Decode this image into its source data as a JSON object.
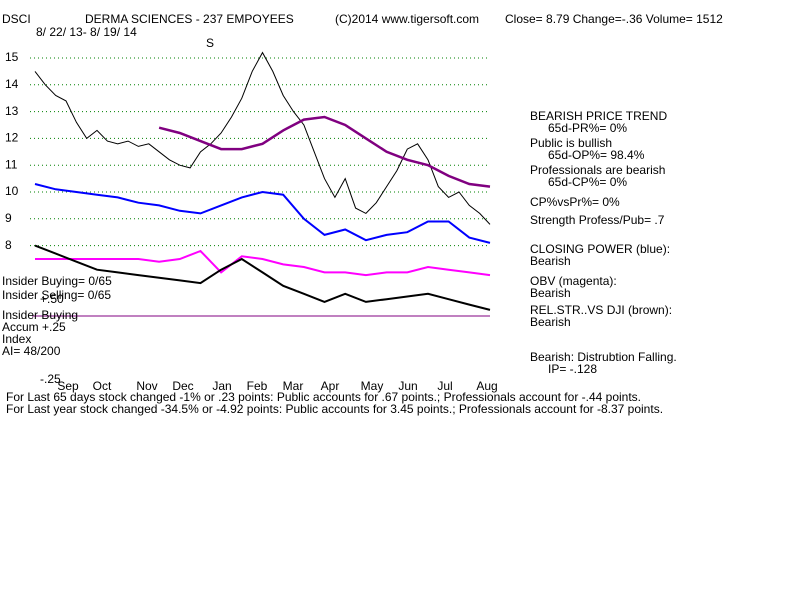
{
  "header": {
    "ticker": "DSCI",
    "company": "DERMA SCIENCES - 237 EMPOYEES",
    "copyright": "(C)2014 www.tigersoft.com",
    "quote": "Close=  8.79  Change=-.36 Volume= 1512",
    "dates": "8/ 22/ 13- 8/ 19/ 14"
  },
  "left_labels": [
    "Insider Buying= 0/65",
    "Insider Selling= 0/65",
    "+.50",
    "Insider Buying",
    "Accum  +.25",
    "Index",
    "AI= 48/200",
    "-.25"
  ],
  "marker": "S",
  "right_notes": [
    "BEARISH PRICE TREND",
    "65d-PR%= 0%",
    "Public is bullish",
    "65d-OP%= 98.4%",
    "Professionals are bearish",
    "65d-CP%= 0%",
    "CP%vsPr%=  0%",
    "Strength Profess/Pub= .7",
    "CLOSING POWER (blue):",
    "Bearish",
    "OBV (magenta):",
    "Bearish",
    "REL.STR..VS DJI (brown):",
    "Bearish",
    "Bearish: Distrubtion Falling.",
    "IP= -.128"
  ],
  "footer": [
    "For Last 65 days stock changed -1% or  .23 points:  Public accounts for  .67 points.;  Professionals account for -.44 points.",
    "For Last year stock changed -34.5% or -4.92 points:  Public accounts for  3.45 points.;  Professionals account for -8.37 points."
  ],
  "chart_data": {
    "type": "line",
    "month_labels": [
      "Sep",
      "Oct",
      "Nov",
      "Dec",
      "Jan",
      "Feb",
      "Mar",
      "Apr",
      "May",
      "Jun",
      "Jul",
      "Aug"
    ],
    "ylim": [
      5,
      15.5
    ],
    "yticks": [
      8,
      9,
      10,
      11,
      12,
      13,
      14,
      15
    ],
    "grid": true,
    "series": [
      {
        "name": "Price",
        "color": "#000000",
        "width": 1,
        "values": [
          14.5,
          14.0,
          13.6,
          13.4,
          12.6,
          12.0,
          12.3,
          11.9,
          11.8,
          11.9,
          11.7,
          11.8,
          11.5,
          11.2,
          11.0,
          10.9,
          11.5,
          11.8,
          12.2,
          12.8,
          13.5,
          14.5,
          15.2,
          14.5,
          13.6,
          13.0,
          12.5,
          11.5,
          10.5,
          9.8,
          10.5,
          9.4,
          9.2,
          9.6,
          10.2,
          10.8,
          11.6,
          11.8,
          11.2,
          10.2,
          9.8,
          10.0,
          9.5,
          9.2,
          8.79
        ]
      },
      {
        "name": "65-day MA",
        "color": "#800080",
        "width": 2.5,
        "values": [
          null,
          null,
          null,
          null,
          null,
          null,
          12.4,
          12.2,
          11.9,
          11.6,
          11.6,
          11.8,
          12.3,
          12.7,
          12.8,
          12.5,
          12.0,
          11.5,
          11.2,
          11.0,
          10.6,
          10.3,
          10.2
        ]
      },
      {
        "name": "Closing Power",
        "color": "#0000ff",
        "width": 2,
        "values": [
          10.3,
          10.1,
          10.0,
          9.9,
          9.8,
          9.6,
          9.5,
          9.3,
          9.2,
          9.5,
          9.8,
          10.0,
          9.9,
          9.0,
          8.4,
          8.6,
          8.2,
          8.4,
          8.5,
          8.9,
          8.9,
          8.3,
          8.1
        ]
      },
      {
        "name": "OBV",
        "color": "#ff00ff",
        "width": 2,
        "values": [
          7.5,
          7.5,
          7.5,
          7.5,
          7.5,
          7.5,
          7.4,
          7.5,
          7.8,
          7.0,
          7.6,
          7.5,
          7.3,
          7.2,
          7.0,
          7.0,
          6.9,
          7.0,
          7.0,
          7.2,
          7.1,
          7.0,
          6.9
        ]
      },
      {
        "name": "Rel. Strength",
        "color": "#000000",
        "width": 2,
        "values": [
          8.0,
          7.7,
          7.4,
          7.1,
          7.0,
          6.9,
          6.8,
          6.7,
          6.6,
          7.1,
          7.5,
          7.0,
          6.5,
          6.2,
          5.9,
          6.2,
          5.9,
          6.0,
          6.1,
          6.2,
          6.0,
          5.8,
          5.6
        ]
      }
    ]
  }
}
